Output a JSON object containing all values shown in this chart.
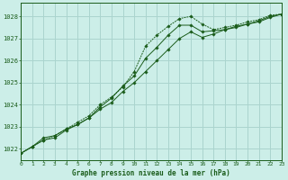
{
  "title": "Graphe pression niveau de la mer (hPa)",
  "bg_color": "#cceee8",
  "grid_color": "#aad4ce",
  "line_color": "#1a5c1a",
  "xlim": [
    0,
    23
  ],
  "ylim": [
    1021.5,
    1028.6
  ],
  "yticks": [
    1022,
    1023,
    1024,
    1025,
    1026,
    1027,
    1028
  ],
  "xticks": [
    0,
    1,
    2,
    3,
    4,
    5,
    6,
    7,
    8,
    9,
    10,
    11,
    12,
    13,
    14,
    15,
    16,
    17,
    18,
    19,
    20,
    21,
    22,
    23
  ],
  "series1_x": [
    0,
    1,
    2,
    3,
    4,
    5,
    6,
    7,
    8,
    9,
    10,
    11,
    12,
    13,
    14,
    15,
    16,
    17,
    18,
    19,
    20,
    21,
    22,
    23
  ],
  "series1_y": [
    1021.8,
    1022.1,
    1022.5,
    1022.6,
    1022.9,
    1023.1,
    1023.4,
    1023.8,
    1024.1,
    1024.6,
    1025.0,
    1025.5,
    1026.0,
    1026.5,
    1027.0,
    1027.3,
    1027.05,
    1027.2,
    1027.4,
    1027.55,
    1027.65,
    1027.8,
    1028.0,
    1028.1
  ],
  "series2_x": [
    0,
    1,
    2,
    3,
    4,
    5,
    6,
    7,
    8,
    9,
    10,
    11,
    12,
    13,
    14,
    15,
    16,
    17,
    18,
    19,
    20,
    21,
    22,
    23
  ],
  "series2_y": [
    1021.8,
    1022.1,
    1022.4,
    1022.6,
    1022.9,
    1023.2,
    1023.5,
    1024.0,
    1024.35,
    1024.8,
    1025.5,
    1026.65,
    1027.15,
    1027.55,
    1027.9,
    1028.0,
    1027.65,
    1027.4,
    1027.5,
    1027.6,
    1027.75,
    1027.85,
    1028.05,
    1028.1
  ],
  "series3_x": [
    0,
    1,
    2,
    3,
    4,
    5,
    6,
    7,
    8,
    9,
    10,
    11,
    12,
    13,
    14,
    15,
    16,
    17,
    18,
    19,
    20,
    21,
    22,
    23
  ],
  "series3_y": [
    1021.8,
    1022.1,
    1022.4,
    1022.5,
    1022.85,
    1023.1,
    1023.4,
    1023.9,
    1024.3,
    1024.85,
    1025.3,
    1026.1,
    1026.6,
    1027.15,
    1027.6,
    1027.6,
    1027.3,
    1027.35,
    1027.4,
    1027.5,
    1027.65,
    1027.75,
    1027.95,
    1028.1
  ]
}
